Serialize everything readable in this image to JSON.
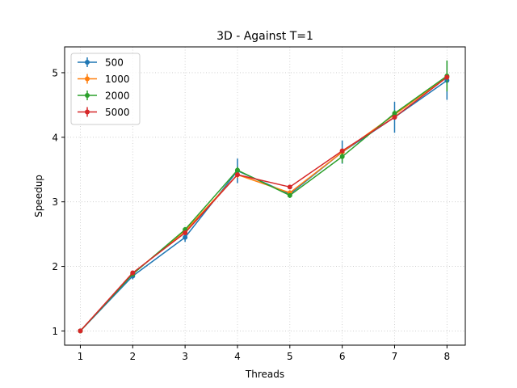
{
  "chart_data": {
    "type": "line",
    "title": "3D - Against T=1",
    "xlabel": "Threads",
    "ylabel": "Speedup",
    "x": [
      1,
      2,
      3,
      4,
      5,
      6,
      7,
      8
    ],
    "xlim": [
      0.7,
      8.35
    ],
    "ylim": [
      0.78,
      5.4
    ],
    "xticks": [
      1,
      2,
      3,
      4,
      5,
      6,
      7,
      8
    ],
    "yticks": [
      1,
      2,
      3,
      4,
      5
    ],
    "grid": true,
    "legend_position": "top-left",
    "series": [
      {
        "name": "500",
        "color": "#1f77b4",
        "values": [
          1.0,
          1.85,
          2.45,
          3.48,
          3.12,
          3.77,
          4.31,
          4.88
        ],
        "errors": [
          0.0,
          0.05,
          0.07,
          0.19,
          0.06,
          0.18,
          0.24,
          0.3
        ]
      },
      {
        "name": "1000",
        "color": "#ff7f0e",
        "values": [
          1.0,
          1.89,
          2.55,
          3.42,
          3.14,
          3.77,
          4.35,
          4.94
        ],
        "errors": [
          0.0,
          0.02,
          0.03,
          0.05,
          0.03,
          0.04,
          0.05,
          0.06
        ]
      },
      {
        "name": "2000",
        "color": "#2ca02c",
        "values": [
          1.0,
          1.88,
          2.57,
          3.49,
          3.1,
          3.7,
          4.37,
          4.95
        ],
        "errors": [
          0.0,
          0.03,
          0.04,
          0.05,
          0.03,
          0.1,
          0.05,
          0.24
        ]
      },
      {
        "name": "5000",
        "color": "#d62728",
        "values": [
          1.0,
          1.9,
          2.52,
          3.42,
          3.23,
          3.79,
          4.31,
          4.93
        ],
        "errors": [
          0.0,
          0.01,
          0.02,
          0.03,
          0.02,
          0.03,
          0.03,
          0.04
        ]
      }
    ]
  }
}
